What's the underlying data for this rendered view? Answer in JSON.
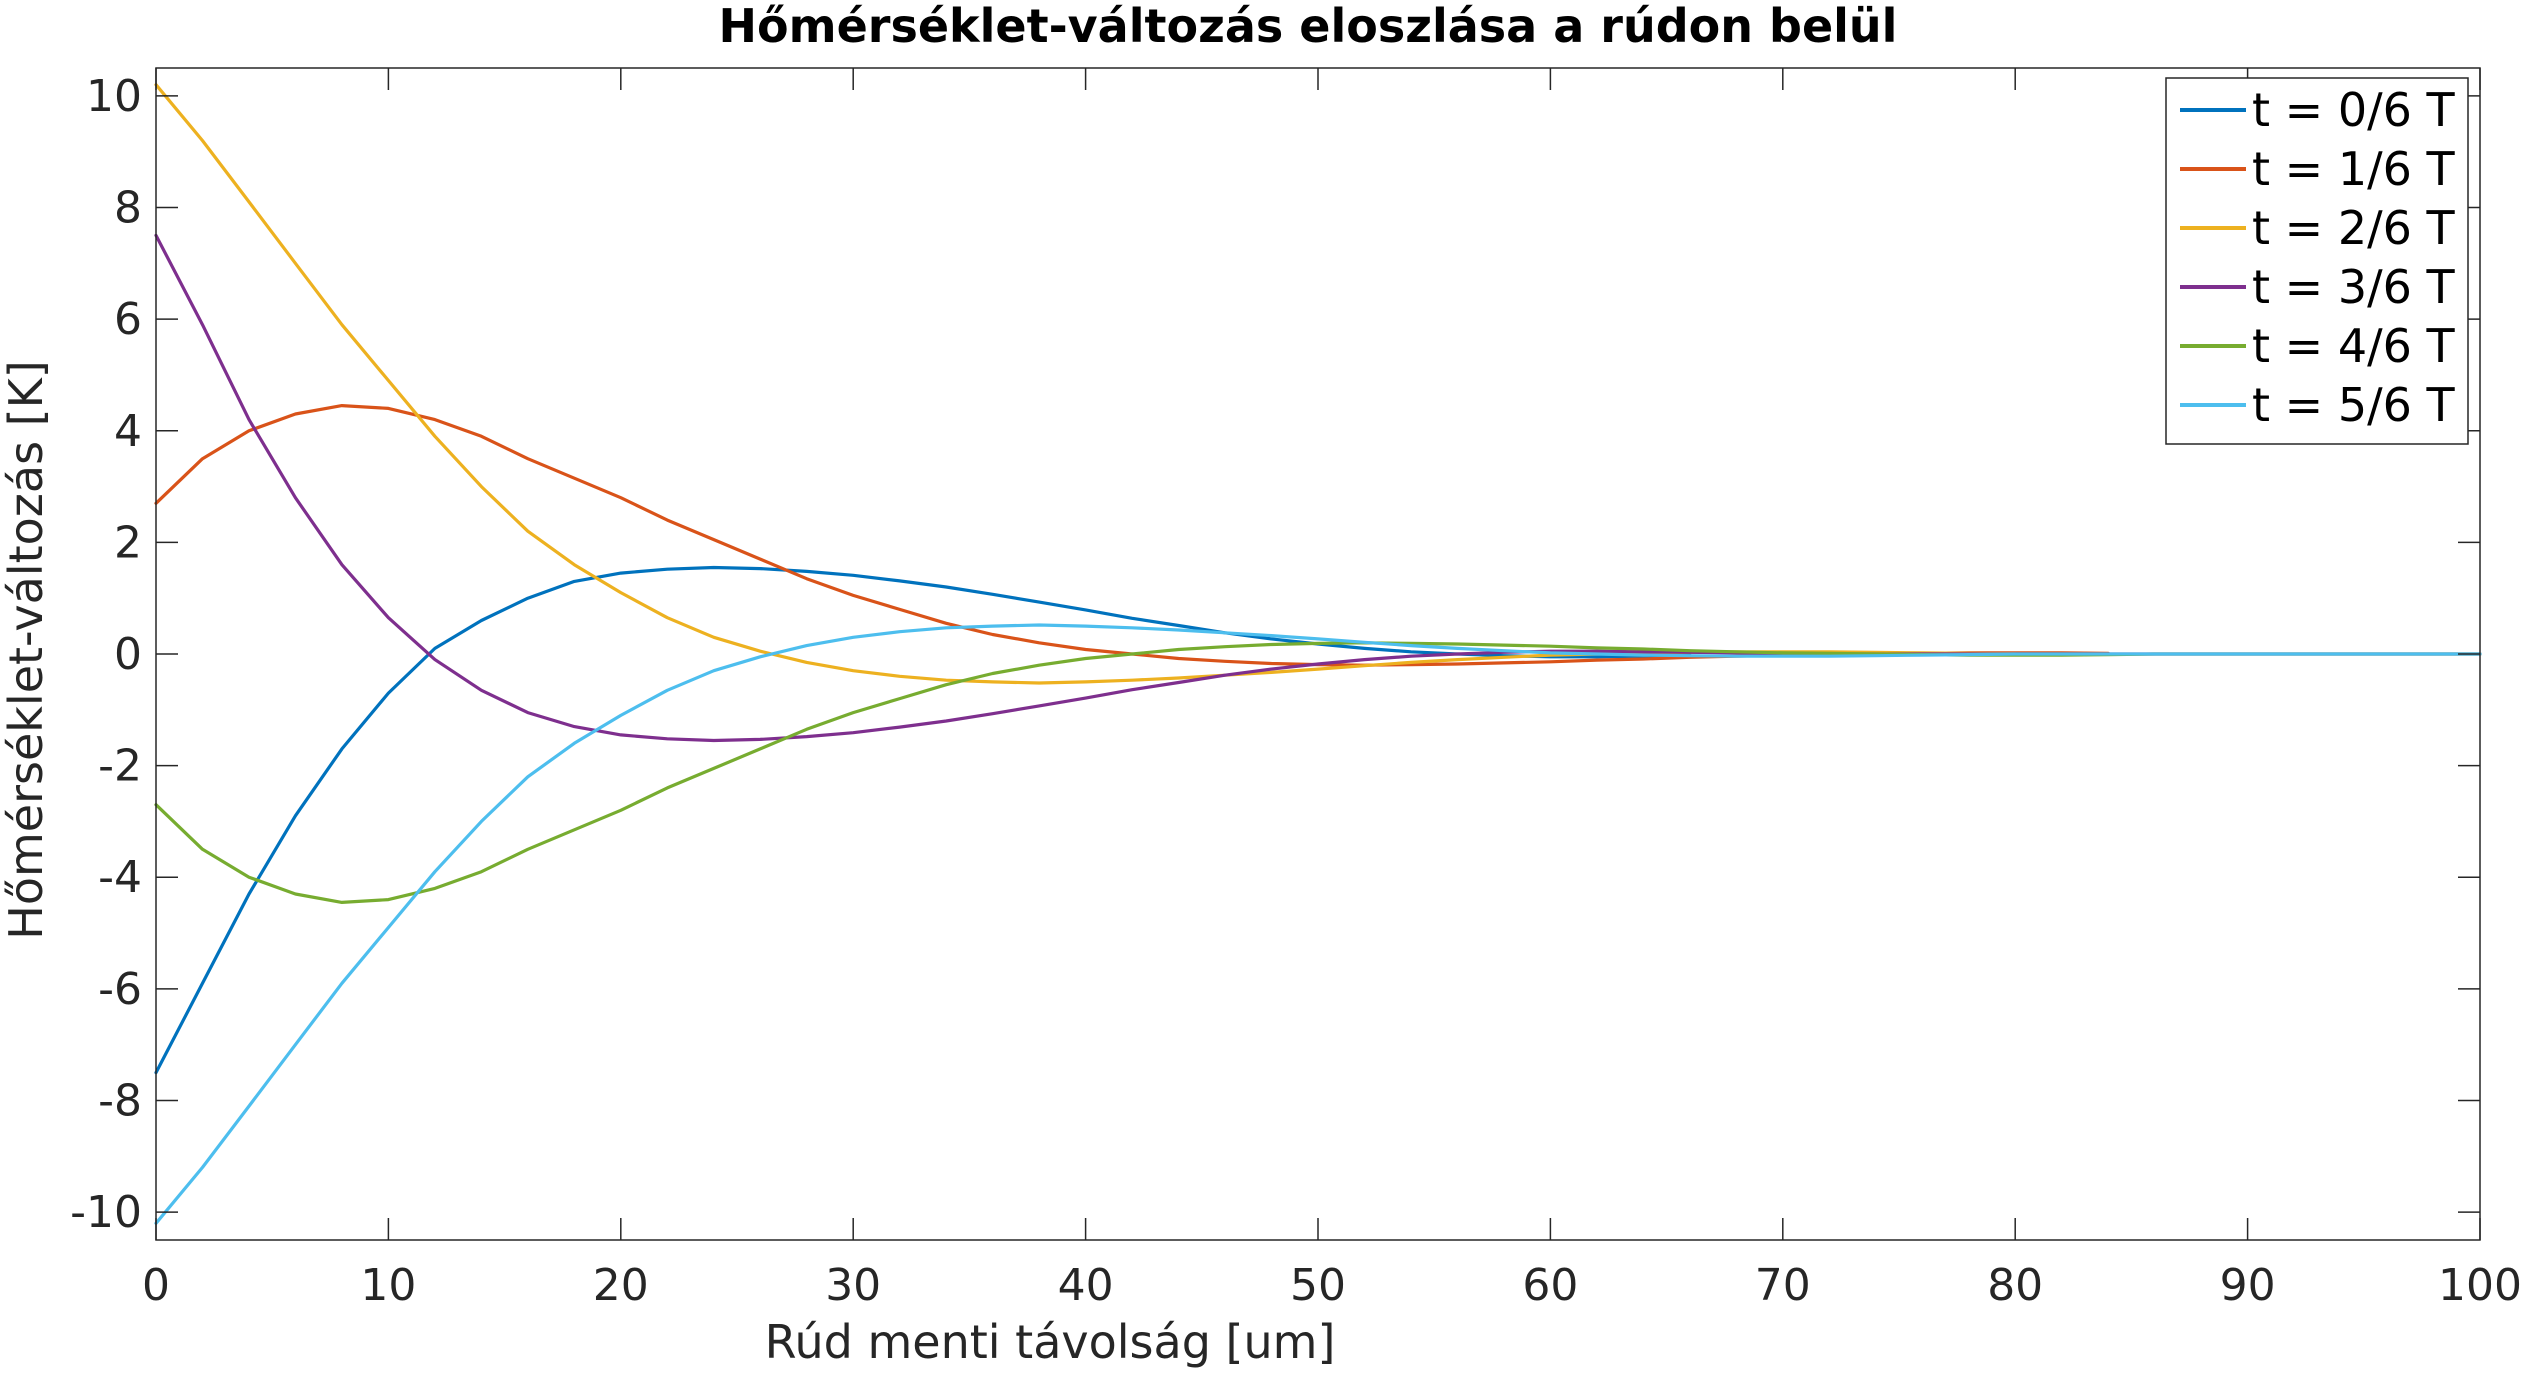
{
  "chart_data": {
    "type": "line",
    "title": "Hőmérséklet-változás eloszlása a rúdon belül",
    "xlabel": "Rúd menti távolság [um]",
    "ylabel": "Hőmérséklet-változás [K]",
    "xlim": [
      0,
      100
    ],
    "ylim": [
      -10.5,
      10.5
    ],
    "xticks": [
      0,
      10,
      20,
      30,
      40,
      50,
      60,
      70,
      80,
      90,
      100
    ],
    "yticks": [
      -10,
      -8,
      -6,
      -4,
      -2,
      0,
      2,
      4,
      6,
      8,
      10
    ],
    "grid": false,
    "legend_position": "top-right",
    "series": [
      {
        "name": "t = 0/6 T",
        "color": "#0072BD",
        "x": [
          0,
          2,
          4,
          6,
          8,
          10,
          12,
          14,
          16,
          18,
          20,
          22,
          24,
          26,
          28,
          30,
          32,
          34,
          36,
          38,
          40,
          42,
          44,
          46,
          48,
          50,
          52,
          54,
          56,
          58,
          60,
          62,
          64,
          66
        ],
        "y": [
          -7.5,
          -5.9,
          -4.3,
          -2.9,
          -1.7,
          -0.7,
          0.1,
          0.6,
          1.0,
          1.3,
          1.45,
          1.52,
          1.55,
          1.53,
          1.48,
          1.41,
          1.31,
          1.2,
          1.07,
          0.93,
          0.79,
          0.64,
          0.51,
          0.38,
          0.27,
          0.18,
          0.1,
          0.04,
          0.0,
          -0.03,
          -0.05,
          -0.05,
          -0.04,
          -0.02
        ]
      },
      {
        "name": "t = 1/6 T",
        "color": "#D95319",
        "x": [
          0,
          2,
          4,
          6,
          8,
          10,
          12,
          14,
          16,
          18,
          20,
          22,
          24,
          26,
          28,
          30,
          32,
          34,
          36,
          38,
          40,
          42,
          44,
          46,
          48,
          50,
          52,
          54,
          56,
          58,
          60,
          62,
          64,
          66,
          68,
          70,
          72,
          74,
          76,
          78,
          80,
          82,
          84
        ],
        "y": [
          2.7,
          3.5,
          4.0,
          4.3,
          4.45,
          4.4,
          4.2,
          3.9,
          3.5,
          3.15,
          2.8,
          2.4,
          2.05,
          1.7,
          1.35,
          1.05,
          0.8,
          0.55,
          0.35,
          0.2,
          0.08,
          0.0,
          -0.08,
          -0.13,
          -0.17,
          -0.19,
          -0.2,
          -0.19,
          -0.18,
          -0.16,
          -0.14,
          -0.11,
          -0.09,
          -0.06,
          -0.04,
          -0.02,
          -0.01,
          0.0,
          0.01,
          0.02,
          0.02,
          0.02,
          0.01
        ]
      },
      {
        "name": "t = 2/6 T",
        "color": "#EDB120",
        "x": [
          0,
          2,
          4,
          6,
          8,
          10,
          12,
          14,
          16,
          18,
          20,
          22,
          24,
          26,
          28,
          30,
          32,
          34,
          36,
          38,
          40,
          42,
          44,
          46,
          48,
          50,
          52,
          54,
          56,
          58,
          60,
          62,
          64,
          66,
          68,
          70,
          72,
          74,
          76,
          78,
          80
        ],
        "y": [
          10.2,
          9.2,
          8.1,
          7.0,
          5.9,
          4.9,
          3.9,
          3.0,
          2.2,
          1.6,
          1.1,
          0.65,
          0.3,
          0.05,
          -0.15,
          -0.3,
          -0.4,
          -0.47,
          -0.5,
          -0.52,
          -0.5,
          -0.47,
          -0.43,
          -0.38,
          -0.33,
          -0.27,
          -0.21,
          -0.15,
          -0.1,
          -0.06,
          -0.02,
          0.0,
          0.02,
          0.03,
          0.04,
          0.04,
          0.04,
          0.03,
          0.02,
          0.01,
          0.0
        ]
      },
      {
        "name": "t = 3/6 T",
        "color": "#7E2F8E",
        "x": [
          0,
          2,
          4,
          6,
          8,
          10,
          12,
          14,
          16,
          18,
          20,
          22,
          24,
          26,
          28,
          30,
          32,
          34,
          36,
          38,
          40,
          42,
          44,
          46,
          48,
          50,
          52,
          54,
          56,
          58,
          60,
          62,
          64,
          66,
          68,
          70,
          72,
          74,
          76,
          78,
          80,
          82,
          84,
          86,
          88,
          90,
          92,
          94,
          96,
          98,
          100
        ],
        "y": [
          7.5,
          5.9,
          4.2,
          2.8,
          1.6,
          0.65,
          -0.1,
          -0.65,
          -1.05,
          -1.3,
          -1.45,
          -1.52,
          -1.55,
          -1.53,
          -1.48,
          -1.41,
          -1.31,
          -1.2,
          -1.07,
          -0.93,
          -0.79,
          -0.64,
          -0.51,
          -0.38,
          -0.27,
          -0.18,
          -0.1,
          -0.04,
          0.0,
          0.03,
          0.05,
          0.05,
          0.04,
          0.03,
          0.02,
          0.01,
          0.0,
          0.0,
          0.0,
          0.0,
          0.0,
          0.0,
          0.0,
          0.0,
          0.0,
          0.0,
          0.0,
          0.0,
          0.0,
          0.0,
          0.0
        ]
      },
      {
        "name": "t = 4/6 T",
        "color": "#77AC30",
        "x": [
          0,
          2,
          4,
          6,
          8,
          10,
          12,
          14,
          16,
          18,
          20,
          22,
          24,
          26,
          28,
          30,
          32,
          34,
          36,
          38,
          40,
          42,
          44,
          46,
          48,
          50,
          52,
          54,
          56,
          58,
          60,
          62,
          64,
          66,
          68,
          70,
          72,
          74,
          76,
          78,
          80,
          82,
          84,
          86,
          88,
          90,
          92,
          94,
          96,
          98,
          100
        ],
        "y": [
          -2.7,
          -3.5,
          -4.0,
          -4.3,
          -4.45,
          -4.4,
          -4.2,
          -3.9,
          -3.5,
          -3.15,
          -2.8,
          -2.4,
          -2.05,
          -1.7,
          -1.35,
          -1.05,
          -0.8,
          -0.55,
          -0.35,
          -0.2,
          -0.08,
          0.0,
          0.08,
          0.13,
          0.17,
          0.19,
          0.2,
          0.19,
          0.18,
          0.16,
          0.14,
          0.11,
          0.09,
          0.06,
          0.04,
          0.02,
          0.01,
          0.0,
          -0.01,
          -0.02,
          -0.02,
          -0.02,
          -0.01,
          0.0,
          0.0,
          0.0,
          0.0,
          0.0,
          0.0,
          0.0,
          0.0
        ]
      },
      {
        "name": "t = 5/6 T",
        "color": "#4DBEEE",
        "x": [
          0,
          2,
          4,
          6,
          8,
          10,
          12,
          14,
          16,
          18,
          20,
          22,
          24,
          26,
          28,
          30,
          32,
          34,
          36,
          38,
          40,
          42,
          44,
          46,
          48,
          50,
          52,
          54,
          56,
          58,
          60,
          62,
          64,
          66,
          68,
          70,
          72,
          74,
          76,
          78,
          80,
          82,
          84,
          86,
          88,
          90,
          92,
          94,
          96,
          98,
          100
        ],
        "y": [
          -10.2,
          -9.2,
          -8.1,
          -7.0,
          -5.9,
          -4.9,
          -3.9,
          -3.0,
          -2.2,
          -1.6,
          -1.1,
          -0.65,
          -0.3,
          -0.05,
          0.15,
          0.3,
          0.4,
          0.47,
          0.5,
          0.52,
          0.5,
          0.47,
          0.43,
          0.38,
          0.33,
          0.27,
          0.21,
          0.15,
          0.1,
          0.06,
          0.02,
          0.0,
          -0.02,
          -0.03,
          -0.04,
          -0.04,
          -0.04,
          -0.03,
          -0.02,
          -0.01,
          0.0,
          0.0,
          0.0,
          0.0,
          0.0,
          0.0,
          0.0,
          0.0,
          0.0,
          0.0,
          0.0
        ]
      }
    ]
  }
}
